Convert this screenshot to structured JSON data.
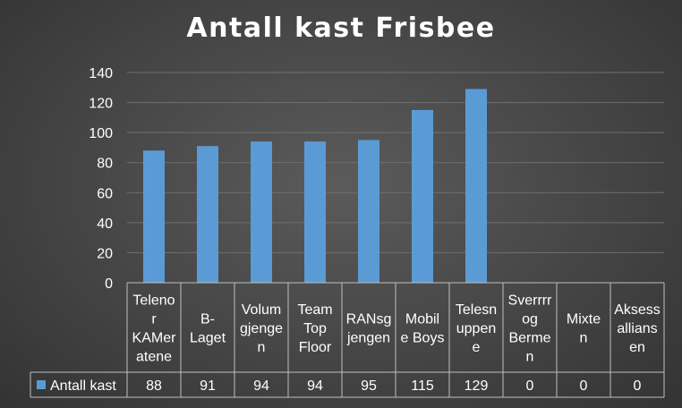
{
  "chart_data": {
    "type": "bar",
    "title": "Antall kast Frisbee",
    "categories": [
      "Telenor KAMeratene",
      "B-Laget",
      "Volumgjengen",
      "Team Top Floor",
      "RANsgjengen",
      "Mobile Boys",
      "Telesnuppene",
      "Sverrrr og Bermen",
      "Mixten",
      "Aksessalliansen"
    ],
    "category_lines": [
      [
        "Teleno",
        "r",
        "KAMer",
        "atene"
      ],
      [
        "B-",
        "Laget"
      ],
      [
        "Volum",
        "gjenge",
        "n"
      ],
      [
        "Team",
        "Top",
        "Floor"
      ],
      [
        "RANsg",
        "jengen"
      ],
      [
        "Mobil",
        "e Boys"
      ],
      [
        "Telesn",
        "uppen",
        "e"
      ],
      [
        "Sverrrr",
        "og",
        "Berme",
        "n"
      ],
      [
        "Mixte",
        "n"
      ],
      [
        "Aksess",
        "allians",
        "en"
      ]
    ],
    "series": [
      {
        "name": "Antall kast",
        "values": [
          88,
          91,
          94,
          94,
          95,
          115,
          129,
          0,
          0,
          0
        ],
        "color": "#5b9bd5"
      }
    ],
    "yticks": [
      "0",
      "20",
      "40",
      "60",
      "80",
      "100",
      "120",
      "140"
    ],
    "ylim": [
      0,
      140
    ],
    "grid": true,
    "data_table": true,
    "legend_position": "data-table-left"
  }
}
